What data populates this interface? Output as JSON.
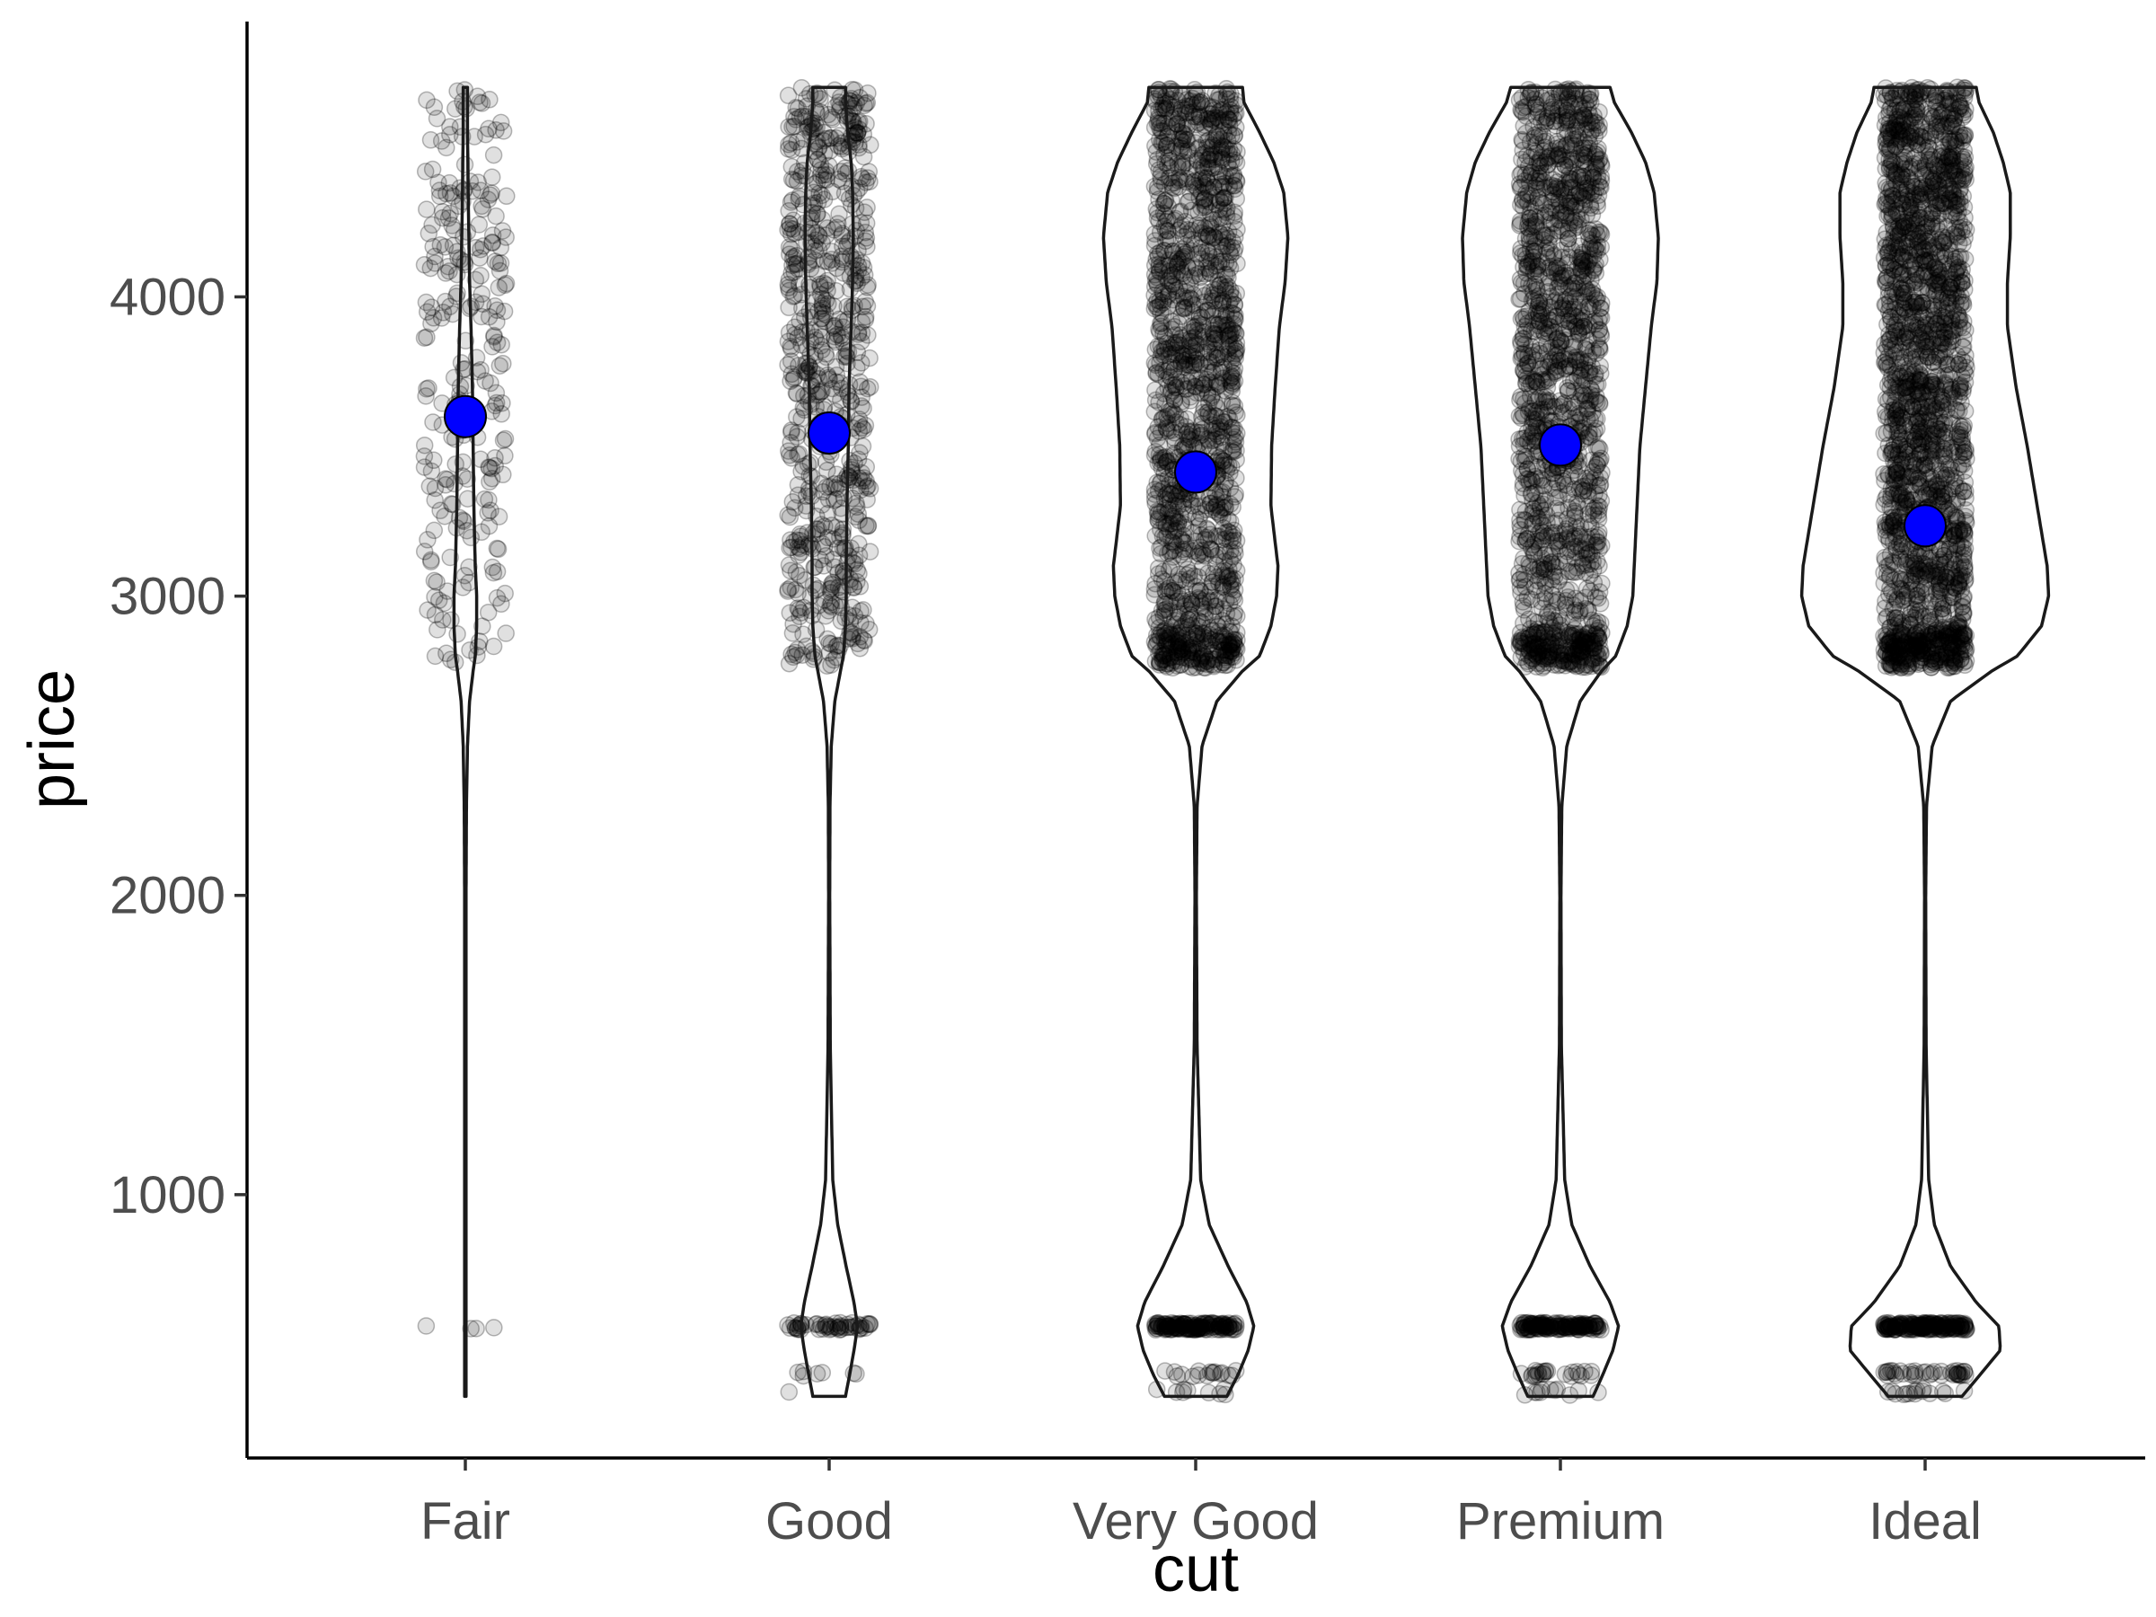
{
  "chart_data": {
    "type": "violin",
    "xlabel": "cut",
    "ylabel": "price",
    "categories": [
      "Fair",
      "Good",
      "Very Good",
      "Premium",
      "Ideal"
    ],
    "ylim": [
      120,
      4920
    ],
    "y_ticks": [
      1000,
      2000,
      3000,
      4000
    ],
    "y_tick_labels": [
      "1000",
      "2000",
      "3000",
      "4000"
    ],
    "grid": false,
    "legend": "none",
    "y_range": [
      326,
      4700
    ],
    "means": [
      3600,
      3545,
      3415,
      3505,
      3235
    ],
    "violin_half_width_profiles": {
      "levels": [
        326,
        400,
        480,
        560,
        640,
        760,
        900,
        1050,
        1500,
        2000,
        2300,
        2500,
        2650,
        2750,
        2800,
        2900,
        3000,
        3100,
        3300,
        3500,
        3700,
        3900,
        4050,
        4200,
        4350,
        4450,
        4550,
        4650,
        4700
      ],
      "widths": [
        [
          0.5,
          0.5,
          0.5,
          0.5,
          0.5,
          0.5,
          0.5,
          0.5,
          0.5,
          0.5,
          0.8,
          1.5,
          3.0,
          5.5,
          7.0,
          8.0,
          8.0,
          7.0,
          6.0,
          5.5,
          5.0,
          4.0,
          3.0,
          2.5,
          2.0,
          1.8,
          1.5,
          1.5,
          1.5
        ],
        [
          11.5,
          14.5,
          17.5,
          20.0,
          17.5,
          12.0,
          6.0,
          2.5,
          0.8,
          0.4,
          0.6,
          1.5,
          4.0,
          8.0,
          10.0,
          11.5,
          12.0,
          12.0,
          12.5,
          13.5,
          14.0,
          15.5,
          16.5,
          17.0,
          16.5,
          15.5,
          13.0,
          11.5,
          11.5
        ],
        [
          22.0,
          30.0,
          37.0,
          41.0,
          36.0,
          23.0,
          9.5,
          3.5,
          1.0,
          0.5,
          1.0,
          4.5,
          15.0,
          33.0,
          45.0,
          53.0,
          57.0,
          58.0,
          53.0,
          53.5,
          56.0,
          59.0,
          63.0,
          65.0,
          62.0,
          55.0,
          45.0,
          34.0,
          33.0
        ],
        [
          23.0,
          30.0,
          37.0,
          41.0,
          35.0,
          21.0,
          8.0,
          3.0,
          0.7,
          0.4,
          1.0,
          4.5,
          14.0,
          29.0,
          39.0,
          47.0,
          51.0,
          52.0,
          54.0,
          56.0,
          60.0,
          64.0,
          68.0,
          69.0,
          66.0,
          60.0,
          50.0,
          38.0,
          35.0
        ],
        [
          26.0,
          39.0,
          53.0,
          52.0,
          36.0,
          18.0,
          6.5,
          2.5,
          0.7,
          0.4,
          1.0,
          5.0,
          18.0,
          47.0,
          65.0,
          82.0,
          87.0,
          86.0,
          79.0,
          72.0,
          64.0,
          58.0,
          58.0,
          60.0,
          60.0,
          55.0,
          48.0,
          38.0,
          36.0
        ]
      ]
    }
  }
}
